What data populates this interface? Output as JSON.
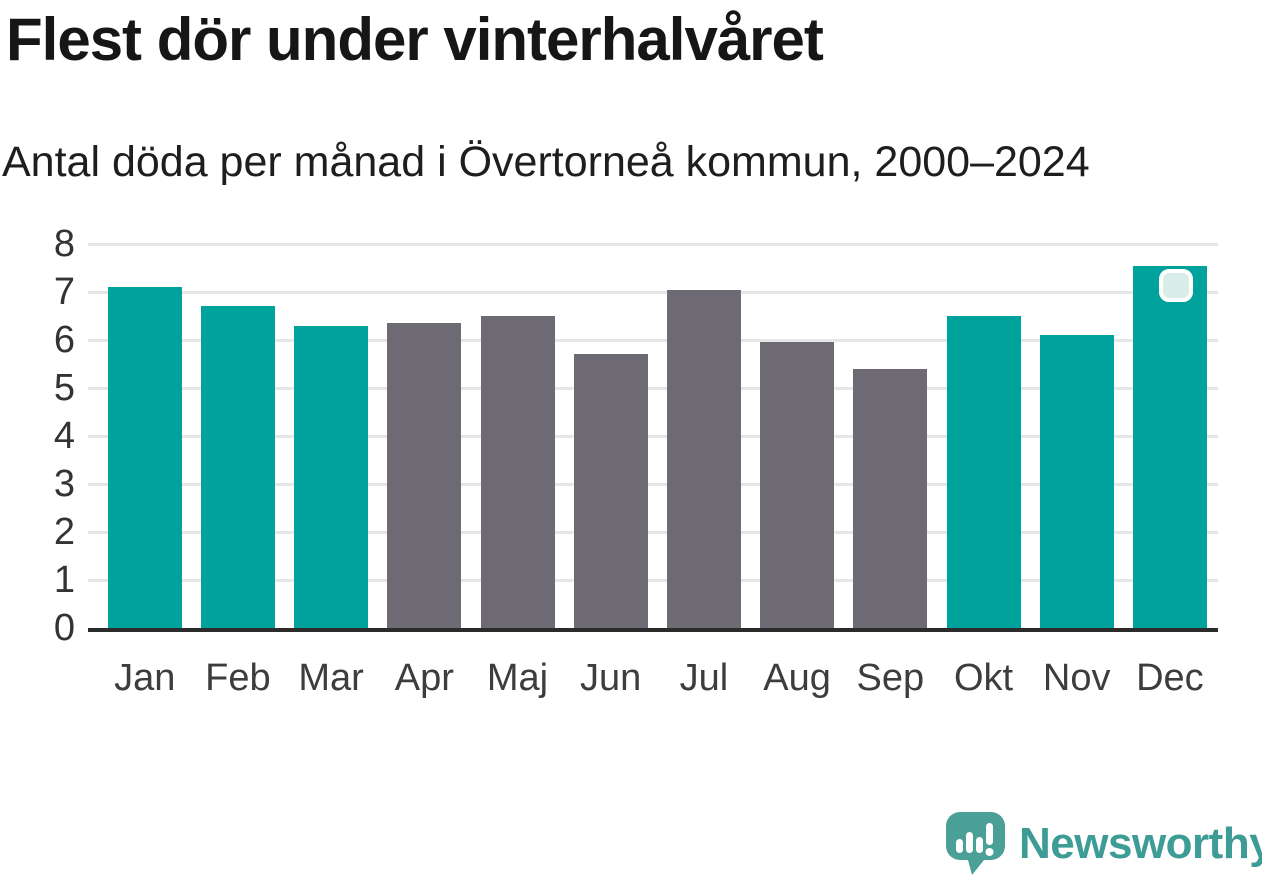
{
  "title": "Flest dör under vinterhalvåret",
  "subtitle": "Antal döda per månad i Övertorneå kommun, 2000–2024",
  "chart_data": {
    "type": "bar",
    "categories": [
      "Jan",
      "Feb",
      "Mar",
      "Apr",
      "Maj",
      "Jun",
      "Jul",
      "Aug",
      "Sep",
      "Okt",
      "Nov",
      "Dec"
    ],
    "values": [
      7.1,
      6.7,
      6.3,
      6.35,
      6.5,
      5.7,
      7.05,
      5.95,
      5.4,
      6.5,
      6.1,
      7.55
    ],
    "highlighted": [
      true,
      true,
      true,
      false,
      false,
      false,
      false,
      false,
      false,
      true,
      true,
      true
    ],
    "title": "Flest dör under vinterhalvåret",
    "subtitle": "Antal döda per månad i Övertorneå kommun, 2000–2024",
    "xlabel": "",
    "ylabel": "",
    "yticks": [
      0,
      1,
      2,
      3,
      4,
      5,
      6,
      7,
      8
    ],
    "ylim": [
      0,
      8
    ],
    "grid": "horizontal",
    "legend": "none",
    "marker_on": "Dec",
    "colors": {
      "highlight_bar": "#00A39B",
      "default_bar": "#6E6A73",
      "gridline": "#E6E6E6",
      "axis_line": "#2B2B2B",
      "tick_text": "#333333",
      "marker_fill": "#D8ECE8",
      "marker_border": "#FFFFFF"
    }
  },
  "branding": {
    "logo_text": "Newsworthy",
    "logo_color": "#3D9C95",
    "icon_color": "#4AA096",
    "icon_name": "newsworthy-speech-bubble-chart-icon"
  }
}
